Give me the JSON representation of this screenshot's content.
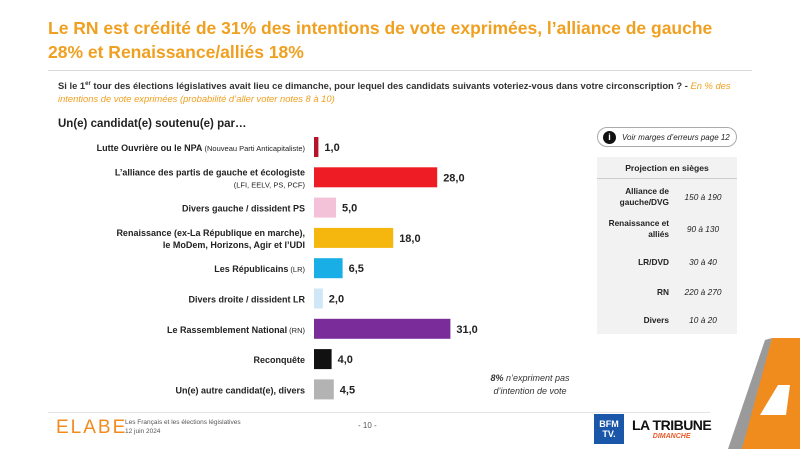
{
  "header": {
    "title": "Le RN est crédité de 31% des intentions de vote exprimées, l’alliance de gauche 28% et Renaissance/alliés 18%"
  },
  "question": {
    "text_a": "Si le 1",
    "sup": "er",
    "text_b": " tour des élections législatives avait lieu ce dimanche, pour lequel des candidats suivants voteriez-vous dans votre circonscription ? -",
    "unit": " En % des intentions de vote exprimées (probabilité d’aller voter notes 8 à 10)"
  },
  "subhead": "Un(e) candidat(e) soutenu(e) par…",
  "chart_data": {
    "type": "bar",
    "orientation": "horizontal",
    "categories": [
      {
        "main": "Lutte Ouvrière ou le NPA",
        "sub": " (Nouveau Parti Anticapitaliste)"
      },
      {
        "main": "L’alliance des partis de gauche et écologiste",
        "sub": "(LFI, EELV, PS, PCF)"
      },
      {
        "main": "Divers gauche / dissident PS",
        "sub": ""
      },
      {
        "main": "Renaissance (ex-La République en marche),",
        "main2": "le MoDem, Horizons, Agir et l’UDI",
        "sub": ""
      },
      {
        "main": "Les Républicains",
        "sub": " (LR)"
      },
      {
        "main": "Divers droite / dissident LR",
        "sub": ""
      },
      {
        "main": "Le Rassemblement National",
        "sub": " (RN)"
      },
      {
        "main": "Reconquête",
        "sub": ""
      },
      {
        "main": "Un(e) autre candidat(e), divers",
        "sub": ""
      }
    ],
    "values": [
      1.0,
      28.0,
      5.0,
      18.0,
      6.5,
      2.0,
      31.0,
      4.0,
      4.5
    ],
    "value_labels": [
      "1,0",
      "28,0",
      "5,0",
      "18,0",
      "6,5",
      "2,0",
      "31,0",
      "4,0",
      "4,5"
    ],
    "colors": [
      "#b5142b",
      "#ee1c25",
      "#f4c2d8",
      "#f5b70e",
      "#19aee6",
      "#cfe7f7",
      "#7a2d9a",
      "#111111",
      "#b3b3b3"
    ]
  },
  "note": {
    "icon": "info-icon",
    "text": "Voir marges d’erreurs page 12"
  },
  "projection": {
    "title": "Projection en sièges",
    "rows": [
      {
        "label": "Alliance de gauche/DVG",
        "value": "150 à 190"
      },
      {
        "label": "Renaissance et alliés",
        "value": "90 à 130"
      },
      {
        "label": "LR/DVD",
        "value": "30 à 40"
      },
      {
        "label": "RN",
        "value": "220 à 270"
      },
      {
        "label": "Divers",
        "value": "10 à 20"
      }
    ]
  },
  "abstention": {
    "bold": "8%",
    "text": " n’expriment pas d’intention de vote"
  },
  "footer": {
    "logo": "ELABE",
    "line1": "Les Français et les élections législatives",
    "line2": "12 juin 2024",
    "page": "- 10 -",
    "bfm_line1": "BFM",
    "bfm_line2": "TV.",
    "tribune": "LA TRIBUNE",
    "tribune_sub": "DIMANCHE"
  }
}
